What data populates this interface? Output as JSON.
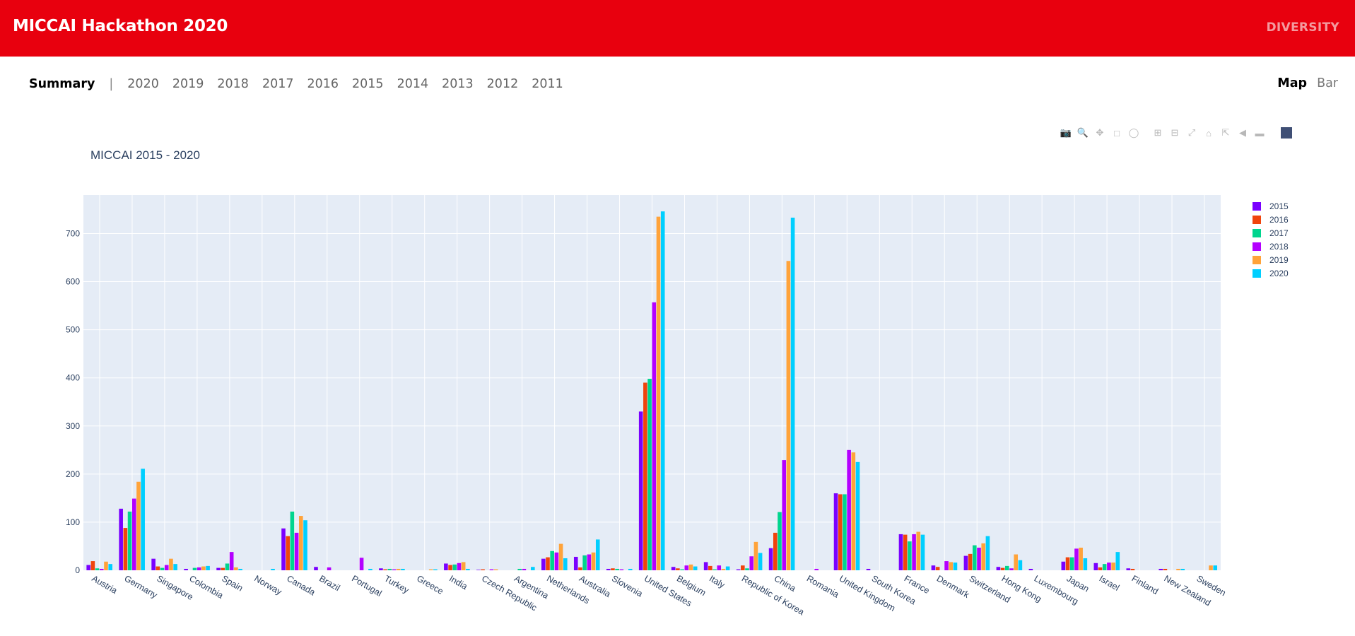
{
  "header": {
    "title": "MICCAI Hackathon 2020",
    "right_link": "DIVERSITY"
  },
  "nav": {
    "active": "Summary",
    "separator": "|",
    "years": [
      "2020",
      "2019",
      "2018",
      "2017",
      "2016",
      "2015",
      "2014",
      "2013",
      "2012",
      "2011"
    ]
  },
  "view_toggle": {
    "map": "Map",
    "bar": "Bar",
    "selected": "Bar"
  },
  "modebar": {
    "icons": [
      "camera-icon",
      "zoom-icon",
      "pan-icon",
      "box-select-icon",
      "lasso-select-icon",
      "zoom-in-icon",
      "zoom-out-icon",
      "autoscale-icon",
      "reset-axes-icon",
      "spike-lines-icon",
      "hover-closest-icon",
      "hover-compare-icon",
      "plotly-logo-icon"
    ]
  },
  "colors": {
    "brand_red": "#e8000e",
    "plot_bg": "#e5ecf6",
    "text": "#2a3f5f"
  },
  "chart_data": {
    "type": "bar",
    "title": "MICCAI 2015 - 2020",
    "xlabel": "",
    "ylabel": "",
    "ylim": [
      0,
      780
    ],
    "yticks": [
      0,
      100,
      200,
      300,
      400,
      500,
      600,
      700
    ],
    "grid": true,
    "legend_position": "right",
    "categories": [
      "Austria",
      "Germany",
      "Singapore",
      "Colombia",
      "Spain",
      "Norway",
      "Canada",
      "Brazil",
      "Portugal",
      "Turkey",
      "Greece",
      "India",
      "Czech Republic",
      "Argentina",
      "Netherlands",
      "Australia",
      "Slovenia",
      "United States",
      "Belgium",
      "Italy",
      "Republic of Korea",
      "China",
      "Romania",
      "United Kingdom",
      "South Korea",
      "France",
      "Denmark",
      "Switzerland",
      "Hong Kong",
      "Luxembourg",
      "Japan",
      "Israel",
      "Finland",
      "New Zealand",
      "Sweden"
    ],
    "series": [
      {
        "name": "2015",
        "color": "#7a00ff",
        "values": [
          11,
          128,
          24,
          3,
          5,
          0,
          87,
          7,
          0,
          4,
          0,
          14,
          1,
          0,
          24,
          28,
          3,
          330,
          7,
          17,
          2,
          46,
          0,
          160,
          3,
          75,
          10,
          30,
          7,
          3,
          18,
          15,
          4,
          3,
          0
        ]
      },
      {
        "name": "2016",
        "color": "#f0440c",
        "values": [
          19,
          88,
          8,
          0,
          5,
          0,
          71,
          0,
          0,
          2,
          0,
          11,
          2,
          0,
          27,
          6,
          4,
          390,
          4,
          9,
          10,
          78,
          0,
          158,
          0,
          74,
          7,
          34,
          5,
          0,
          27,
          6,
          3,
          3,
          0
        ]
      },
      {
        "name": "2017",
        "color": "#00d58e",
        "values": [
          4,
          122,
          5,
          5,
          14,
          0,
          122,
          0,
          0,
          3,
          0,
          12,
          0,
          3,
          40,
          31,
          3,
          398,
          2,
          2,
          4,
          121,
          0,
          158,
          0,
          60,
          0,
          52,
          9,
          0,
          27,
          13,
          0,
          0,
          0
        ]
      },
      {
        "name": "2018",
        "color": "#b400ff",
        "values": [
          3,
          149,
          11,
          6,
          38,
          0,
          78,
          6,
          26,
          2,
          0,
          15,
          2,
          3,
          37,
          33,
          2,
          557,
          10,
          10,
          29,
          229,
          3,
          250,
          0,
          75,
          19,
          47,
          4,
          0,
          45,
          16,
          0,
          0,
          0
        ]
      },
      {
        "name": "2019",
        "color": "#ffa33a",
        "values": [
          18,
          184,
          24,
          8,
          6,
          0,
          113,
          0,
          0,
          3,
          2,
          17,
          2,
          0,
          55,
          37,
          0,
          735,
          12,
          3,
          59,
          643,
          0,
          245,
          0,
          80,
          17,
          56,
          33,
          0,
          47,
          16,
          0,
          3,
          10
        ]
      },
      {
        "name": "2020",
        "color": "#00cfff",
        "values": [
          13,
          211,
          13,
          9,
          3,
          3,
          104,
          0,
          3,
          3,
          2,
          3,
          0,
          7,
          25,
          64,
          3,
          746,
          8,
          8,
          36,
          733,
          0,
          225,
          0,
          74,
          16,
          71,
          21,
          0,
          25,
          38,
          0,
          3,
          10
        ]
      }
    ]
  }
}
